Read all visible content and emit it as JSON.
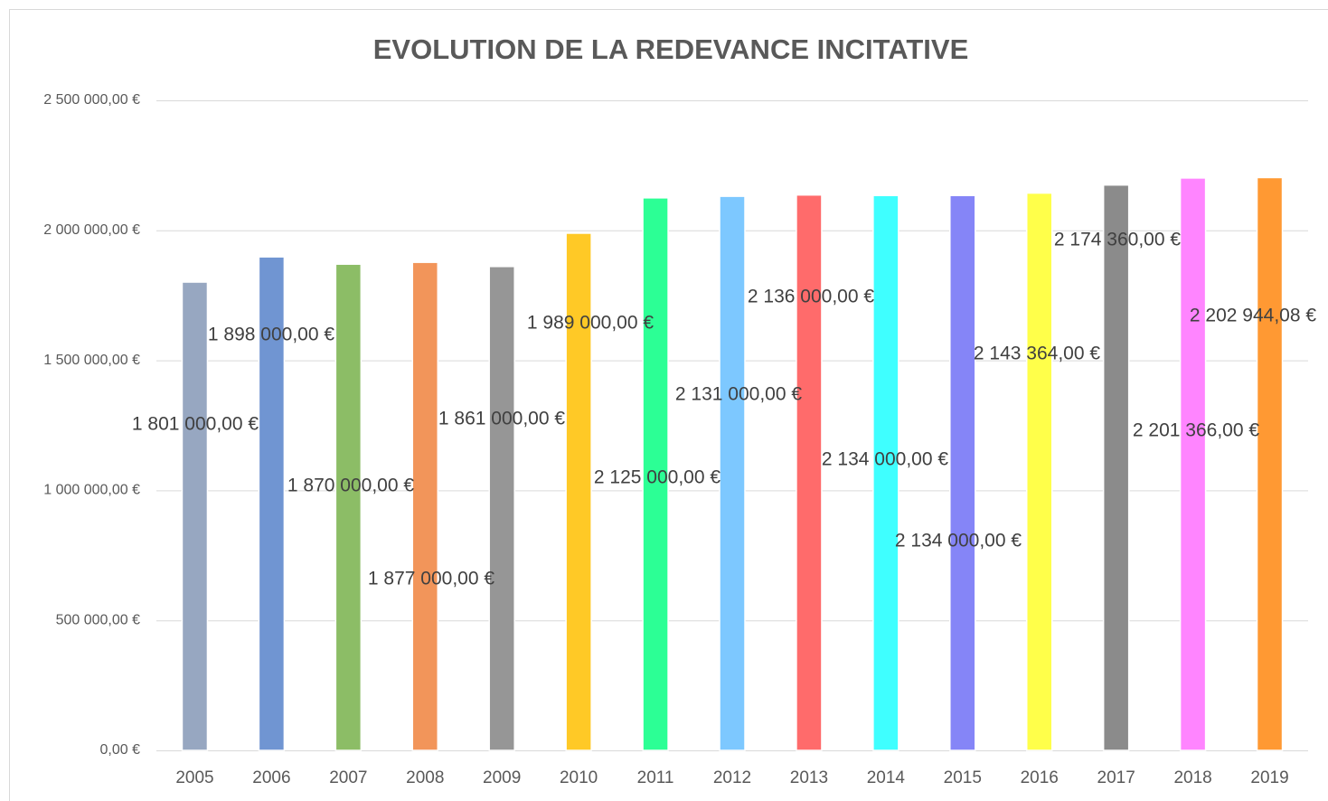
{
  "chart_data": {
    "type": "bar",
    "title": "EVOLUTION DE LA REDEVANCE INCITATIVE",
    "categories": [
      "2005",
      "2006",
      "2007",
      "2008",
      "2009",
      "2010",
      "2011",
      "2012",
      "2013",
      "2014",
      "2015",
      "2016",
      "2017",
      "2018",
      "2019"
    ],
    "values": [
      1801000,
      1898000,
      1870000,
      1877000,
      1861000,
      1989000,
      2125000,
      2131000,
      2136000,
      2134000,
      2134000,
      2143364,
      2174360,
      2201366,
      2202944.08
    ],
    "value_labels": [
      "1 801 000,00 €",
      "1 898 000,00 €",
      "1 870 000,00 €",
      "1 877 000,00 €",
      "1 861 000,00 €",
      "1 989 000,00 €",
      "2 125 000,00 €",
      "2 131 000,00 €",
      "2 136 000,00 €",
      "2 134 000,00 €",
      "2 134 000,00 €",
      "2 143 364,00 €",
      "2 174 360,00 €",
      "2 201 366,00 €",
      "2 202 944,08 €"
    ],
    "colors": [
      "#97a7c1",
      "#7095d2",
      "#8cbd66",
      "#f2955a",
      "#969696",
      "#ffc926",
      "#2cff95",
      "#7dc8ff",
      "#ff6b6b",
      "#3fffff",
      "#8585f7",
      "#ffff4a",
      "#8b8b8b",
      "#ff85ff",
      "#ff9933"
    ],
    "ylim": [
      0,
      2500000
    ],
    "yticks": [
      {
        "value": 0,
        "label": "0,00 €"
      },
      {
        "value": 500000,
        "label": "500 000,00 €"
      },
      {
        "value": 1000000,
        "label": "1 000 000,00 €"
      },
      {
        "value": 1500000,
        "label": "1 500 000,00 €"
      },
      {
        "value": 2000000,
        "label": "2 000 000,00 €"
      },
      {
        "value": 2500000,
        "label": "2 500 000,00 €"
      }
    ],
    "grid": true
  }
}
